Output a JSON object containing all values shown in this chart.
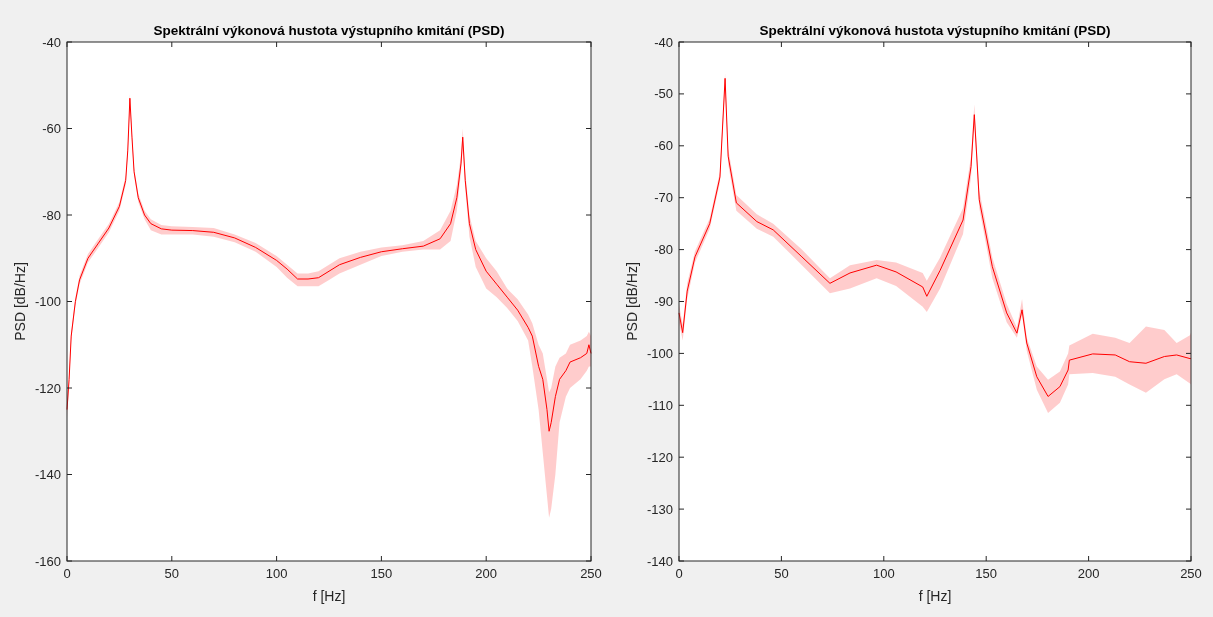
{
  "chart_data": [
    {
      "type": "line",
      "title": "Spektrální výkonová hustota výstupního kmitání (PSD)",
      "xlabel": "f [Hz]",
      "ylabel": "PSD [dB/Hz]",
      "xlim": [
        0,
        250
      ],
      "xticks": [
        0,
        50,
        100,
        150,
        200,
        250
      ],
      "ylim": [
        -160,
        -40
      ],
      "yticks": [
        -160,
        -140,
        -120,
        -100,
        -80,
        -60,
        -40
      ],
      "series": [
        {
          "color": "#ff0000",
          "x": [
            0,
            1,
            2,
            4,
            6,
            10,
            15,
            20,
            25,
            28,
            29,
            30,
            31,
            32,
            34,
            37,
            40,
            45,
            50,
            60,
            70,
            80,
            90,
            100,
            105,
            110,
            115,
            120,
            125,
            130,
            140,
            150,
            160,
            170,
            178,
            183,
            186,
            188,
            188.8,
            190,
            192,
            195,
            200,
            205,
            210,
            215,
            220,
            222,
            225,
            227,
            229,
            230,
            231,
            233,
            235,
            238,
            240,
            245,
            248,
            249,
            250
          ],
          "values": [
            -125,
            -118,
            -108,
            -100,
            -95,
            -90,
            -86.5,
            -83,
            -78,
            -72,
            -65,
            -53,
            -62,
            -70,
            -76,
            -80,
            -82,
            -83.2,
            -83.5,
            -83.6,
            -84,
            -85.3,
            -87.5,
            -90.5,
            -92.5,
            -94.8,
            -94.8,
            -94.5,
            -93,
            -91.5,
            -89.8,
            -88.5,
            -87.8,
            -87.2,
            -85.5,
            -82,
            -76,
            -68,
            -62,
            -72,
            -82,
            -88,
            -93,
            -96,
            -99,
            -102,
            -106,
            -108,
            -115,
            -118,
            -125,
            -130,
            -128,
            -122,
            -118,
            -116,
            -114,
            -113,
            -112,
            -110,
            -112
          ],
          "lower": [
            -127,
            -119,
            -109,
            -101,
            -96,
            -91,
            -87.5,
            -84,
            -79,
            -73,
            -66,
            -54,
            -63,
            -71,
            -77,
            -81,
            -83.5,
            -84.5,
            -84.5,
            -84.5,
            -85,
            -86.3,
            -88.5,
            -92,
            -94.5,
            -96.5,
            -96.5,
            -96.5,
            -95,
            -93.5,
            -91.5,
            -89.5,
            -88.5,
            -88,
            -88,
            -86,
            -79,
            -70,
            -64,
            -74,
            -85,
            -92,
            -97,
            -99,
            -101.5,
            -104.5,
            -109,
            -115,
            -125,
            -135,
            -145,
            -150,
            -148,
            -140,
            -128,
            -122,
            -120,
            -118,
            -116,
            -115,
            -115
          ],
          "upper": [
            -123,
            -117,
            -107,
            -99,
            -94,
            -89,
            -85.5,
            -82,
            -77,
            -71,
            -64,
            -52,
            -61,
            -69,
            -75,
            -79,
            -81,
            -82.3,
            -82.6,
            -82.8,
            -83,
            -84.5,
            -86.5,
            -89.5,
            -91.5,
            -93.5,
            -93.5,
            -93,
            -91.5,
            -90,
            -88.5,
            -87.5,
            -87,
            -86,
            -83.5,
            -79,
            -73,
            -66,
            -60,
            -70,
            -80,
            -86,
            -90,
            -93,
            -97,
            -99.5,
            -103,
            -105,
            -110,
            -112,
            -118,
            -121,
            -120,
            -115,
            -113,
            -112,
            -110,
            -109,
            -108,
            -107,
            -108
          ]
        }
      ]
    },
    {
      "type": "line",
      "title": "Spektrální výkonová hustota výstupního kmitání (PSD)",
      "xlabel": "f [Hz]",
      "ylabel": "PSD [dB/Hz]",
      "xlim": [
        0,
        250
      ],
      "xticks": [
        0,
        50,
        100,
        150,
        200,
        250
      ],
      "ylim": [
        -140,
        -40
      ],
      "yticks": [
        -140,
        -130,
        -120,
        -110,
        -100,
        -90,
        -80,
        -70,
        -60,
        -50,
        -40
      ],
      "series": [
        {
          "color": "#ff0000",
          "x": [
            0,
            1.8,
            4,
            7.8,
            15,
            20,
            22.5,
            24,
            28,
            38,
            46,
            60,
            73.7,
            83.5,
            96.5,
            106,
            119,
            121,
            127.5,
            138.7,
            142.6,
            144.2,
            146.6,
            153,
            160,
            165,
            167.5,
            169.8,
            174.7,
            180.2,
            186,
            190,
            190.6,
            202,
            213,
            220,
            228,
            237,
            243,
            249.5,
            250
          ],
          "values": [
            -92.2,
            -96,
            -88,
            -81.4,
            -75,
            -66,
            -47,
            -62,
            -71,
            -74.6,
            -76.2,
            -81.4,
            -86.5,
            -84.5,
            -83,
            -84.3,
            -87.2,
            -89,
            -84,
            -74.3,
            -64,
            -54,
            -70.4,
            -83.3,
            -92.2,
            -96.1,
            -91.6,
            -98,
            -104.5,
            -108.3,
            -106.4,
            -103.2,
            -101.3,
            -100.1,
            -100.3,
            -101.6,
            -101.9,
            -100.6,
            -100.3,
            -101,
            -101
          ],
          "lower": [
            -94,
            -97.5,
            -89.5,
            -82.5,
            -76,
            -67,
            -48.5,
            -63.5,
            -72.5,
            -76,
            -77.5,
            -83,
            -88.4,
            -87.5,
            -85.5,
            -87,
            -91,
            -92,
            -87.5,
            -77,
            -66,
            -55.5,
            -72,
            -85.5,
            -94,
            -97,
            -92.5,
            -99.5,
            -107,
            -111.5,
            -109.5,
            -106,
            -104,
            -103.8,
            -104.5,
            -106,
            -107.6,
            -105,
            -104,
            -105.8,
            -106
          ],
          "upper": [
            -90.5,
            -94.5,
            -86.5,
            -80.3,
            -74,
            -65,
            -46,
            -60.5,
            -69.5,
            -73.2,
            -75,
            -80,
            -85.5,
            -83,
            -82,
            -82.5,
            -84.5,
            -86,
            -81.5,
            -72,
            -62,
            -52,
            -68.5,
            -81.5,
            -90.5,
            -95,
            -89.5,
            -97,
            -102.5,
            -105.1,
            -103.5,
            -100,
            -98.5,
            -96.2,
            -97,
            -98,
            -94.8,
            -95.5,
            -98,
            -96.5,
            -96
          ]
        }
      ]
    }
  ]
}
